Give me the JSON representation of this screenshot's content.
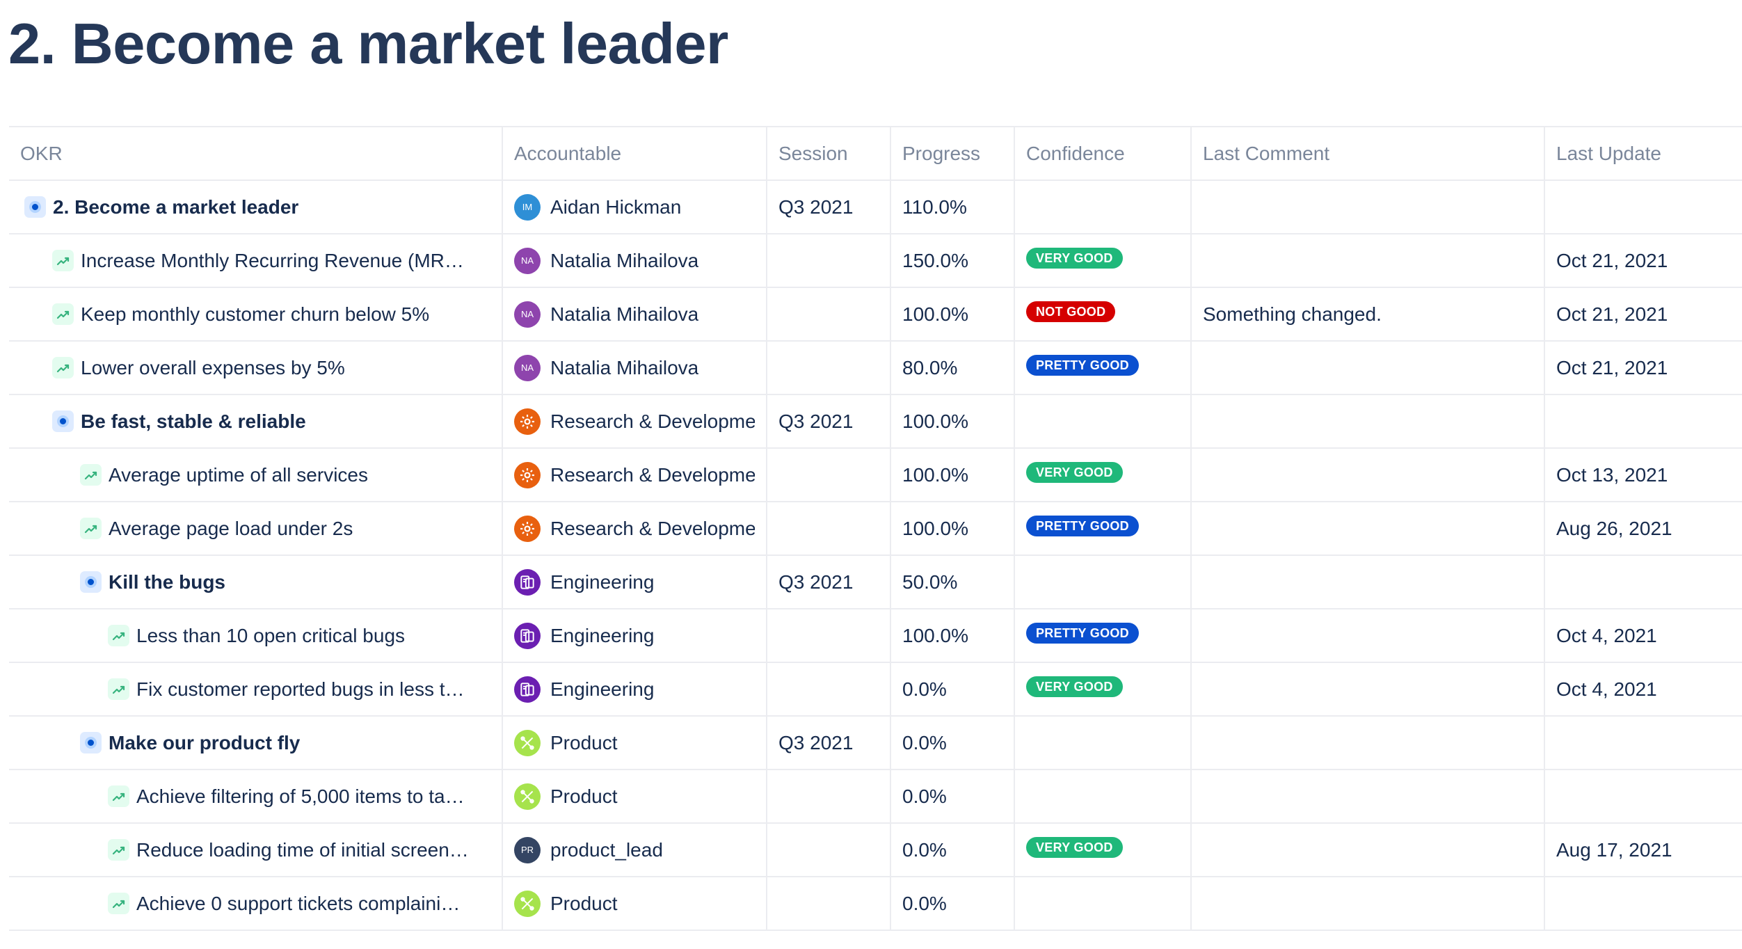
{
  "page": {
    "title": "2. Become a market leader"
  },
  "table": {
    "columns": {
      "okr": "OKR",
      "accountable": "Accountable",
      "session": "Session",
      "progress": "Progress",
      "confidence": "Confidence",
      "last_comment": "Last Comment",
      "last_update": "Last Update"
    },
    "rows": [
      {
        "type": "objective",
        "level": 0,
        "okr": "2. Become a market leader",
        "owner": {
          "kind": "person",
          "initials": "IM",
          "name": "Aidan Hickman",
          "color": "#2e8fd6"
        },
        "session": "Q3 2021",
        "progress": "110.0%",
        "confidence": "",
        "comment": "",
        "updated": ""
      },
      {
        "type": "key-result",
        "level": 1,
        "okr": "Increase Monthly Recurring Revenue (MR…",
        "owner": {
          "kind": "person",
          "initials": "NA",
          "name": "Natalia Mihailova",
          "color": "#8e44ad"
        },
        "session": "",
        "progress": "150.0%",
        "confidence": "VERY GOOD",
        "comment": "",
        "updated": "Oct 21, 2021"
      },
      {
        "type": "key-result",
        "level": 1,
        "okr": "Keep monthly customer churn below 5%",
        "owner": {
          "kind": "person",
          "initials": "NA",
          "name": "Natalia Mihailova",
          "color": "#8e44ad"
        },
        "session": "",
        "progress": "100.0%",
        "confidence": "NOT GOOD",
        "comment": "Something changed.",
        "updated": "Oct 21, 2021"
      },
      {
        "type": "key-result",
        "level": 1,
        "okr": "Lower overall expenses by 5%",
        "owner": {
          "kind": "person",
          "initials": "NA",
          "name": "Natalia Mihailova",
          "color": "#8e44ad"
        },
        "session": "",
        "progress": "80.0%",
        "confidence": "PRETTY GOOD",
        "comment": "",
        "updated": "Oct 21, 2021"
      },
      {
        "type": "objective",
        "level": 1,
        "okr": "Be fast, stable & reliable",
        "owner": {
          "kind": "team",
          "icon": "gear-icon",
          "name": "Research & Developme",
          "color": "#e8600f"
        },
        "session": "Q3 2021",
        "progress": "100.0%",
        "confidence": "",
        "comment": "",
        "updated": ""
      },
      {
        "type": "key-result",
        "level": 2,
        "okr": "Average uptime of all services",
        "owner": {
          "kind": "team",
          "icon": "gear-icon",
          "name": "Research & Developme",
          "color": "#e8600f"
        },
        "session": "",
        "progress": "100.0%",
        "confidence": "VERY GOOD",
        "comment": "",
        "updated": "Oct 13, 2021"
      },
      {
        "type": "key-result",
        "level": 2,
        "okr": "Average page load under 2s",
        "owner": {
          "kind": "team",
          "icon": "gear-icon",
          "name": "Research & Developme",
          "color": "#e8600f"
        },
        "session": "",
        "progress": "100.0%",
        "confidence": "PRETTY GOOD",
        "comment": "",
        "updated": "Aug 26, 2021"
      },
      {
        "type": "objective",
        "level": 2,
        "okr": "Kill the bugs",
        "owner": {
          "kind": "team",
          "icon": "devices-icon",
          "name": "Engineering",
          "color": "#6b1fb1"
        },
        "session": "Q3 2021",
        "progress": "50.0%",
        "confidence": "",
        "comment": "",
        "updated": ""
      },
      {
        "type": "key-result",
        "level": 3,
        "okr": "Less than 10 open critical bugs",
        "owner": {
          "kind": "team",
          "icon": "devices-icon",
          "name": "Engineering",
          "color": "#6b1fb1"
        },
        "session": "",
        "progress": "100.0%",
        "confidence": "PRETTY GOOD",
        "comment": "",
        "updated": "Oct 4, 2021"
      },
      {
        "type": "key-result",
        "level": 3,
        "okr": "Fix customer reported bugs in less t…",
        "owner": {
          "kind": "team",
          "icon": "devices-icon",
          "name": "Engineering",
          "color": "#6b1fb1"
        },
        "session": "",
        "progress": "0.0%",
        "confidence": "VERY GOOD",
        "comment": "",
        "updated": "Oct 4, 2021"
      },
      {
        "type": "objective",
        "level": 2,
        "okr": "Make our product fly",
        "owner": {
          "kind": "team",
          "icon": "tools-icon",
          "name": "Product",
          "color": "#a6e34c"
        },
        "session": "Q3 2021",
        "progress": "0.0%",
        "confidence": "",
        "comment": "",
        "updated": ""
      },
      {
        "type": "key-result",
        "level": 3,
        "okr": "Achieve filtering of 5,000 items to ta…",
        "owner": {
          "kind": "team",
          "icon": "tools-icon",
          "name": "Product",
          "color": "#a6e34c"
        },
        "session": "",
        "progress": "0.0%",
        "confidence": "",
        "comment": "",
        "updated": ""
      },
      {
        "type": "key-result",
        "level": 3,
        "okr": "Reduce loading time of initial screen…",
        "owner": {
          "kind": "person",
          "initials": "PR",
          "name": "product_lead",
          "color": "#344563"
        },
        "session": "",
        "progress": "0.0%",
        "confidence": "VERY GOOD",
        "comment": "",
        "updated": "Aug 17, 2021"
      },
      {
        "type": "key-result",
        "level": 3,
        "okr": "Achieve 0 support tickets complaini…",
        "owner": {
          "kind": "team",
          "icon": "tools-icon",
          "name": "Product",
          "color": "#a6e34c"
        },
        "session": "",
        "progress": "0.0%",
        "confidence": "",
        "comment": "",
        "updated": ""
      }
    ]
  },
  "confidence_colors": {
    "VERY GOOD": "#1fb87a",
    "NOT GOOD": "#d50000",
    "PRETTY GOOD": "#0b50d0"
  }
}
